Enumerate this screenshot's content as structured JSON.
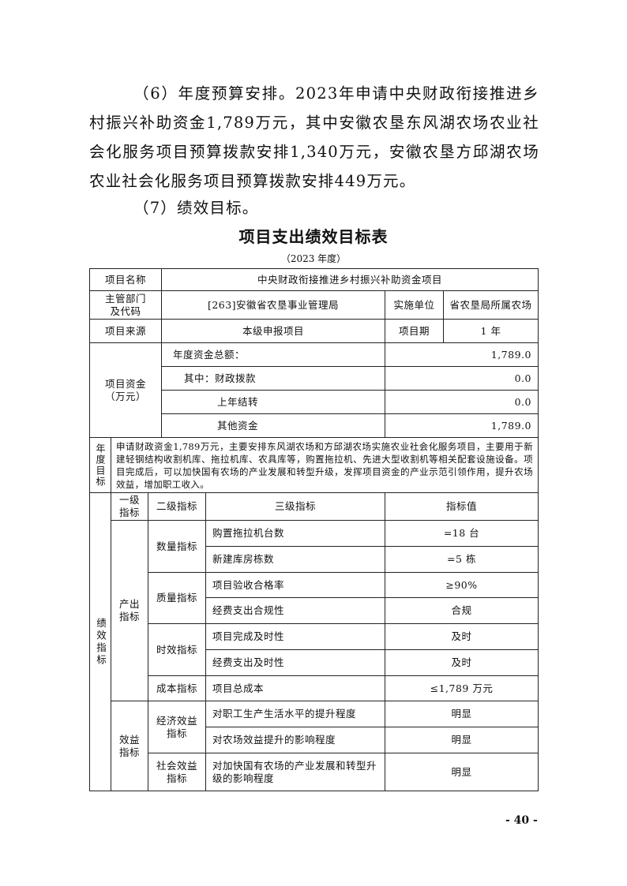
{
  "paragraphs": {
    "budget": "（6）年度预算安排。2023年申请中央财政衔接推进乡村振兴补助资金1,789万元，其中安徽农垦东风湖农场农业社会化服务项目预算拨款安排1,340万元，安徽农垦方邱湖农场农业社会化服务项目预算拨款安排449万元。",
    "goals": "（7）绩效目标。"
  },
  "table_title": "项目支出绩效目标表",
  "table_subtitle": "（2023 年度）",
  "basic": {
    "name_label": "项目名称",
    "name_value": "中央财政衔接推进乡村振兴补助资金项目",
    "dept_label": "主管部门及代码",
    "dept_value": "[263]安徽省农垦事业管理局",
    "impl_label": "实施单位",
    "impl_value": "省农垦局所属农场",
    "source_label": "项目来源",
    "source_value": "本级申报项目",
    "period_label": "项目期",
    "period_value": "1 年"
  },
  "funds": {
    "label": "项目资金（万元）",
    "rows": [
      {
        "label": "年度资金总额：",
        "value": "1,789.0"
      },
      {
        "label": "其中：财政拨款",
        "value": "0.0"
      },
      {
        "label": "上年结转",
        "value": "0.0"
      },
      {
        "label": "其他资金",
        "value": "1,789.0"
      }
    ]
  },
  "annual_goal": {
    "label": "年度目标",
    "text": "申请财政资金1,789万元，主要安排东风湖农场和方邱湖农场实施农业社会化服务项目，主要用于新建轻钢结构收割机库、拖拉机库、农具库等，购置拖拉机、先进大型收割机等相关配套设施设备。项目完成后，可以加快国有农场的产业发展和转型升级，发挥项目资金的产业示范引领作用，提升农场效益，增加职工收入。"
  },
  "indicators": {
    "label": "绩效指标",
    "headers": [
      "一级指标",
      "二级指标",
      "三级指标",
      "指标值"
    ],
    "level1": [
      "产出指标",
      "效益指标"
    ],
    "level2": [
      "数量指标",
      "质量指标",
      "时效指标",
      "成本指标",
      "经济效益指标",
      "社会效益指标"
    ],
    "rows": [
      {
        "name": "购置拖拉机台数",
        "value": "=18 台"
      },
      {
        "name": "新建库房栋数",
        "value": "=5 栋"
      },
      {
        "name": "项目验收合格率",
        "value": "≥90%"
      },
      {
        "name": "经费支出合规性",
        "value": "合规"
      },
      {
        "name": "项目完成及时性",
        "value": "及时"
      },
      {
        "name": "经费支出及时性",
        "value": "及时"
      },
      {
        "name": "项目总成本",
        "value": "≤1,789 万元"
      },
      {
        "name": "对职工生产生活水平的提升程度",
        "value": "明显"
      },
      {
        "name": "对农场效益提升的影响程度",
        "value": "明显"
      },
      {
        "name": "对加快国有农场的产业发展和转型升级的影响程度",
        "value": "明显"
      }
    ]
  },
  "page_number": "- 40 -"
}
